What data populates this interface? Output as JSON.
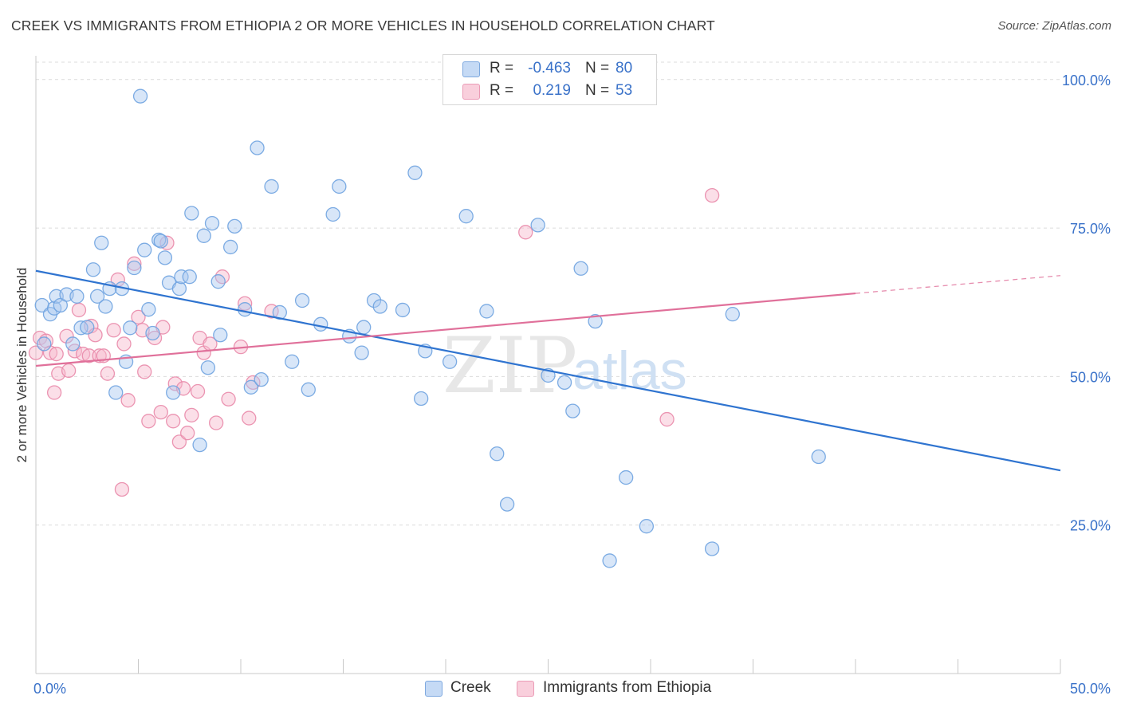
{
  "title": "CREEK VS IMMIGRANTS FROM ETHIOPIA 2 OR MORE VEHICLES IN HOUSEHOLD CORRELATION CHART",
  "source": "Source: ZipAtlas.com",
  "watermark": {
    "zip": "ZIP",
    "atlas": "atlas"
  },
  "legend": {
    "rows": [
      {
        "r_label": "R =",
        "r_value": "-0.463",
        "n_label": "N =",
        "n_value": "80",
        "color": "#a8c8f0"
      },
      {
        "r_label": "R =",
        "r_value": "0.219",
        "n_label": "N =",
        "n_value": "53",
        "color": "#f6b8cc"
      }
    ]
  },
  "chart_data": {
    "type": "scatter",
    "xlabel": "",
    "ylabel": "2 or more Vehicles in Household",
    "xlim": [
      0,
      50
    ],
    "ylim": [
      0,
      104
    ],
    "x_ticks": [
      "0.0%",
      "50.0%"
    ],
    "y_ticks": [
      {
        "value": 25,
        "label": "25.0%"
      },
      {
        "value": 50,
        "label": "50.0%"
      },
      {
        "value": 75,
        "label": "75.0%"
      },
      {
        "value": 100,
        "label": "100.0%"
      }
    ],
    "grid": true,
    "legend_position": "bottom-center",
    "series": [
      {
        "name": "Creek",
        "color": "#6fa3e0",
        "fill": "#a8c8f0",
        "trend": {
          "x": [
            0,
            50
          ],
          "y": [
            67.8,
            34.2
          ],
          "dashed_from": null
        },
        "points": [
          [
            0.3,
            62
          ],
          [
            0.4,
            55.5
          ],
          [
            0.7,
            60.5
          ],
          [
            0.9,
            61.5
          ],
          [
            1.0,
            63.5
          ],
          [
            1.2,
            62
          ],
          [
            1.5,
            63.8
          ],
          [
            1.8,
            55.5
          ],
          [
            2.0,
            63.5
          ],
          [
            2.2,
            58.2
          ],
          [
            2.5,
            58.3
          ],
          [
            2.8,
            68
          ],
          [
            3.0,
            63.5
          ],
          [
            3.2,
            72.5
          ],
          [
            3.4,
            61.8
          ],
          [
            3.6,
            64.8
          ],
          [
            3.9,
            47.3
          ],
          [
            4.2,
            64.8
          ],
          [
            4.4,
            52.5
          ],
          [
            4.6,
            58.2
          ],
          [
            4.8,
            68.3
          ],
          [
            5.1,
            97.2
          ],
          [
            5.3,
            71.3
          ],
          [
            5.5,
            61.3
          ],
          [
            5.7,
            57.3
          ],
          [
            6.0,
            73
          ],
          [
            6.1,
            72.8
          ],
          [
            6.3,
            70
          ],
          [
            6.5,
            65.8
          ],
          [
            6.7,
            47.3
          ],
          [
            7.0,
            64.8
          ],
          [
            7.1,
            66.8
          ],
          [
            7.5,
            66.8
          ],
          [
            7.6,
            77.5
          ],
          [
            8.0,
            38.5
          ],
          [
            8.2,
            73.7
          ],
          [
            8.4,
            51.5
          ],
          [
            8.6,
            75.8
          ],
          [
            8.9,
            66
          ],
          [
            9.0,
            57
          ],
          [
            9.5,
            71.8
          ],
          [
            9.7,
            75.3
          ],
          [
            10.2,
            61.3
          ],
          [
            10.5,
            48.2
          ],
          [
            10.8,
            88.5
          ],
          [
            11.0,
            49.5
          ],
          [
            11.5,
            82
          ],
          [
            11.9,
            60.8
          ],
          [
            12.5,
            52.5
          ],
          [
            13.0,
            62.8
          ],
          [
            13.3,
            47.8
          ],
          [
            13.9,
            58.8
          ],
          [
            14.5,
            77.3
          ],
          [
            14.8,
            82
          ],
          [
            15.3,
            56.8
          ],
          [
            15.9,
            54
          ],
          [
            16.0,
            58.3
          ],
          [
            16.5,
            62.8
          ],
          [
            16.8,
            61.8
          ],
          [
            17.9,
            61.2
          ],
          [
            18.5,
            84.3
          ],
          [
            18.8,
            46.3
          ],
          [
            19.0,
            54.3
          ],
          [
            20.2,
            52.5
          ],
          [
            21.0,
            77
          ],
          [
            22.0,
            61
          ],
          [
            22.5,
            37
          ],
          [
            23.0,
            28.5
          ],
          [
            24.5,
            75.5
          ],
          [
            25.0,
            50.2
          ],
          [
            25.8,
            49
          ],
          [
            26.2,
            44.2
          ],
          [
            26.6,
            68.2
          ],
          [
            27.3,
            59.3
          ],
          [
            28.0,
            19
          ],
          [
            28.8,
            33
          ],
          [
            29.8,
            24.8
          ],
          [
            33.0,
            21
          ],
          [
            34.0,
            60.5
          ],
          [
            38.2,
            36.5
          ]
        ]
      },
      {
        "name": "Immigrants from Ethiopia",
        "color": "#e98aaa",
        "fill": "#f6b8cc",
        "trend": {
          "x": [
            0,
            40
          ],
          "y": [
            51.8,
            64.0
          ],
          "dashed_to": [
            50,
            67.0
          ]
        },
        "points": [
          [
            0.0,
            54
          ],
          [
            0.2,
            56.5
          ],
          [
            0.5,
            56
          ],
          [
            0.7,
            54
          ],
          [
            0.9,
            47.3
          ],
          [
            1.0,
            53.8
          ],
          [
            1.1,
            50.5
          ],
          [
            1.5,
            56.8
          ],
          [
            1.6,
            51
          ],
          [
            1.9,
            54.3
          ],
          [
            2.1,
            61.2
          ],
          [
            2.3,
            53.8
          ],
          [
            2.6,
            53.5
          ],
          [
            2.7,
            58.5
          ],
          [
            2.9,
            57
          ],
          [
            3.1,
            53.5
          ],
          [
            3.3,
            53.5
          ],
          [
            3.5,
            50.5
          ],
          [
            3.8,
            57.8
          ],
          [
            4.0,
            66.3
          ],
          [
            4.2,
            31
          ],
          [
            4.3,
            55.5
          ],
          [
            4.5,
            46
          ],
          [
            4.8,
            69
          ],
          [
            5.0,
            60
          ],
          [
            5.2,
            57.8
          ],
          [
            5.3,
            50.8
          ],
          [
            5.5,
            42.5
          ],
          [
            5.8,
            56.5
          ],
          [
            6.1,
            44
          ],
          [
            6.2,
            58.3
          ],
          [
            6.4,
            72.5
          ],
          [
            6.7,
            42.5
          ],
          [
            6.8,
            48.8
          ],
          [
            7.0,
            39
          ],
          [
            7.2,
            48
          ],
          [
            7.4,
            40.5
          ],
          [
            7.6,
            43.5
          ],
          [
            7.9,
            47.5
          ],
          [
            8.0,
            56.5
          ],
          [
            8.2,
            54
          ],
          [
            8.5,
            55.5
          ],
          [
            8.8,
            42.2
          ],
          [
            9.1,
            66.8
          ],
          [
            9.4,
            46.2
          ],
          [
            10.0,
            55
          ],
          [
            10.2,
            62.3
          ],
          [
            10.4,
            43
          ],
          [
            10.6,
            49
          ],
          [
            11.5,
            61
          ],
          [
            23.9,
            74.3
          ],
          [
            30.8,
            42.8
          ],
          [
            33.0,
            80.5
          ]
        ]
      }
    ]
  }
}
